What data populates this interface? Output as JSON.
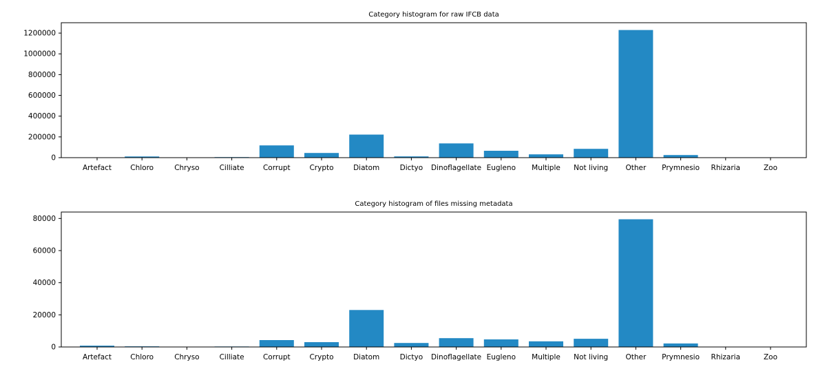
{
  "chart_data": [
    {
      "type": "bar",
      "title": "Category histogram for raw IFCB data",
      "xlabel": "",
      "ylabel": "",
      "categories": [
        "Artefact",
        "Chloro",
        "Chryso",
        "Cilliate",
        "Corrupt",
        "Crypto",
        "Diatom",
        "Dictyo",
        "Dinoflagellate",
        "Eugleno",
        "Multiple",
        "Not living",
        "Other",
        "Prymnesio",
        "Rhizaria",
        "Zoo"
      ],
      "values": [
        1000,
        11000,
        1000,
        5000,
        118000,
        45000,
        222000,
        12000,
        137000,
        66000,
        32000,
        85000,
        1230000,
        25000,
        1000,
        500
      ],
      "ylim": [
        0,
        1300000
      ],
      "yticks": [
        0,
        200000,
        400000,
        600000,
        800000,
        1000000,
        1200000
      ],
      "grid": false,
      "color": "#2389c4"
    },
    {
      "type": "bar",
      "title": "Category histogram of files missing metadata",
      "xlabel": "",
      "ylabel": "",
      "categories": [
        "Artefact",
        "Chloro",
        "Chryso",
        "Cilliate",
        "Corrupt",
        "Crypto",
        "Diatom",
        "Dictyo",
        "Dinoflagellate",
        "Eugleno",
        "Multiple",
        "Not living",
        "Other",
        "Prymnesio",
        "Rhizaria",
        "Zoo"
      ],
      "values": [
        800,
        400,
        100,
        300,
        4300,
        3000,
        23000,
        2500,
        5500,
        4700,
        3500,
        5100,
        79500,
        2200,
        100,
        50
      ],
      "ylim": [
        0,
        84000
      ],
      "yticks": [
        0,
        20000,
        40000,
        60000,
        80000
      ],
      "grid": false,
      "color": "#2389c4"
    }
  ]
}
